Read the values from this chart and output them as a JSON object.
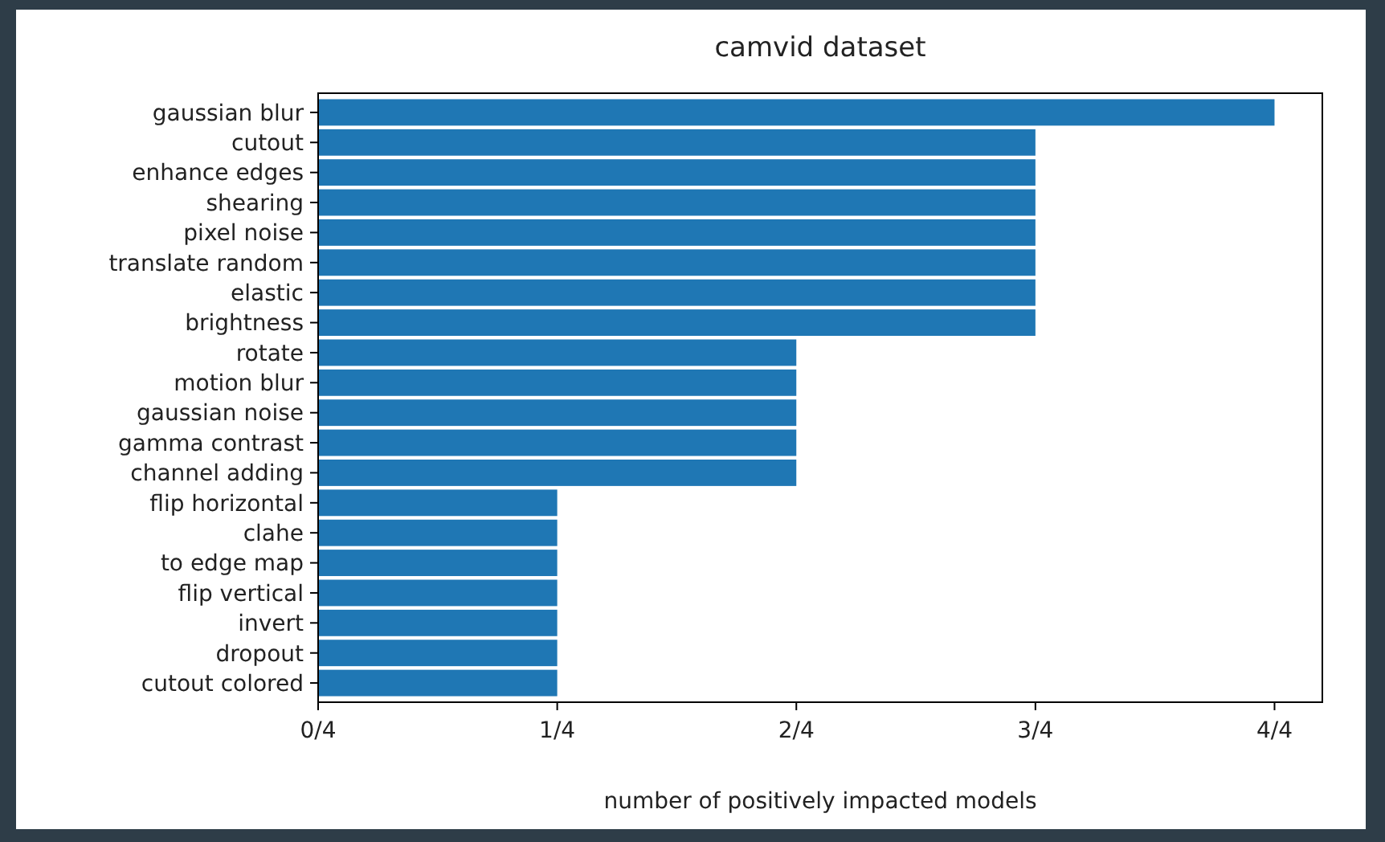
{
  "chart_data": {
    "type": "bar",
    "orientation": "horizontal",
    "title": "camvid dataset",
    "xlabel": "number of positively impacted models",
    "categories": [
      "gaussian blur",
      "cutout",
      "enhance edges",
      "shearing",
      "pixel noise",
      "translate random",
      "elastic",
      "brightness",
      "rotate",
      "motion blur",
      "gaussian noise",
      "gamma contrast",
      "channel adding",
      "flip horizontal",
      "clahe",
      "to edge map",
      "flip vertical",
      "invert",
      "dropout",
      "cutout colored"
    ],
    "values": [
      1,
      0.75,
      0.75,
      0.75,
      0.75,
      0.75,
      0.75,
      0.75,
      0.5,
      0.5,
      0.5,
      0.5,
      0.5,
      0.25,
      0.25,
      0.25,
      0.25,
      0.25,
      0.25,
      0.25
    ],
    "color": "#1f77b4",
    "xlim": [
      0,
      1.05
    ],
    "xticks": [
      {
        "value": 0,
        "label": "0/4"
      },
      {
        "value": 0.25,
        "label": "1/4"
      },
      {
        "value": 0.5,
        "label": "2/4"
      },
      {
        "value": 0.75,
        "label": "3/4"
      },
      {
        "value": 1,
        "label": "4/4"
      }
    ],
    "grid": false
  }
}
